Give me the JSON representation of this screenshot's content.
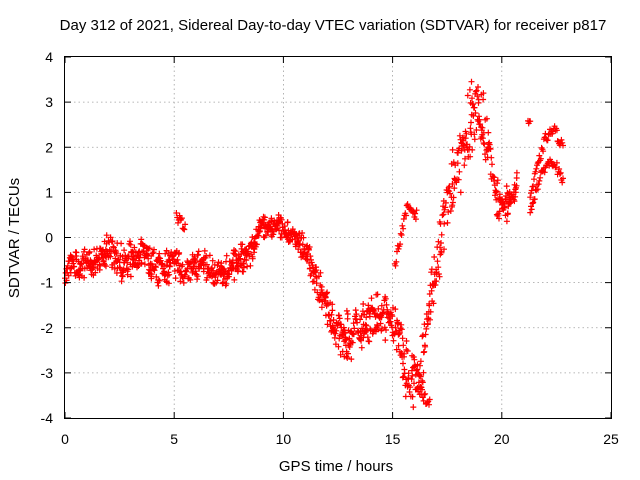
{
  "chart_data": {
    "type": "scatter",
    "title": "Day 312 of 2021, Sidereal Day-to-day VTEC variation (SDTVAR) for receiver p817",
    "xlabel": "GPS time / hours",
    "ylabel": "SDTVAR / TECUs",
    "xlim": [
      0,
      25
    ],
    "ylim": [
      -4,
      4
    ],
    "xticks": [
      0,
      5,
      10,
      15,
      20,
      25
    ],
    "yticks": [
      -4,
      -3,
      -2,
      -1,
      0,
      1,
      2,
      3,
      4
    ],
    "xtick_labels": [
      "0",
      "5",
      "10",
      "15",
      "20",
      "25"
    ],
    "ytick_labels": [
      "-4",
      "-3",
      "-2",
      "-1",
      "0",
      "1",
      "2",
      "3",
      "4"
    ],
    "grid": true,
    "marker": "+",
    "color": "#ff0000",
    "series": [
      {
        "name": "SDTVAR",
        "trend": {
          "x": [
            0.0,
            0.3,
            0.6,
            1.0,
            1.5,
            2.0,
            2.5,
            3.0,
            3.5,
            4.0,
            4.5,
            5.0,
            5.5,
            6.0,
            6.5,
            7.0,
            7.5,
            8.0,
            8.5,
            9.0,
            9.3,
            9.7,
            10.0,
            10.5,
            11.0,
            11.5,
            12.0,
            12.5,
            13.0,
            13.5,
            14.0,
            14.5,
            15.0,
            15.3,
            15.6,
            16.0,
            16.3,
            16.6,
            17.0,
            17.3,
            17.6,
            18.0,
            18.3,
            18.6,
            18.9,
            19.2,
            19.5,
            19.8,
            20.1,
            20.4,
            20.7
          ],
          "y": [
            -0.9,
            -0.5,
            -0.7,
            -0.5,
            -0.6,
            -0.2,
            -0.6,
            -0.5,
            -0.3,
            -0.6,
            -0.7,
            -0.5,
            -0.8,
            -0.6,
            -0.6,
            -0.9,
            -0.7,
            -0.5,
            -0.3,
            0.3,
            0.2,
            0.3,
            0.2,
            0.0,
            -0.3,
            -0.9,
            -1.6,
            -2.1,
            -2.2,
            -2.0,
            -1.8,
            -1.7,
            -1.8,
            -2.2,
            -2.9,
            -3.2,
            -3.0,
            -1.8,
            -0.6,
            0.2,
            1.0,
            1.6,
            2.1,
            2.7,
            2.8,
            2.4,
            1.5,
            0.8,
            0.7,
            0.9,
            1.2
          ]
        },
        "spread": {
          "x": [
            0.0,
            2.0,
            4.0,
            6.0,
            8.0,
            9.0,
            10.0,
            11.0,
            12.0,
            13.0,
            14.0,
            15.0,
            15.5,
            16.0,
            16.5,
            17.0,
            18.0,
            19.0,
            20.0,
            20.7
          ],
          "y": [
            0.25,
            0.35,
            0.45,
            0.3,
            0.35,
            0.25,
            0.2,
            0.3,
            0.45,
            0.5,
            0.45,
            0.4,
            0.6,
            0.6,
            0.5,
            0.7,
            0.7,
            0.7,
            0.35,
            0.3
          ]
        },
        "extra_segments": [
          {
            "x": [
              5.1,
              5.5
            ],
            "y": [
              0.45,
              0.25
            ]
          },
          {
            "x": [
              15.1,
              15.4,
              15.7,
              16.1
            ],
            "y": [
              -0.6,
              0.1,
              0.7,
              0.5
            ]
          },
          {
            "x": [
              16.1,
              16.4,
              16.7
            ],
            "y": [
              -3.3,
              -3.5,
              -3.7
            ]
          },
          {
            "x": [
              21.2,
              21.3
            ],
            "y": [
              2.6,
              2.6
            ]
          },
          {
            "x": [
              21.3,
              21.6,
              22.0,
              22.4,
              22.8
            ],
            "y": [
              0.9,
              1.5,
              2.2,
              2.4,
              2.0
            ]
          },
          {
            "x": [
              21.3,
              21.6,
              22.0,
              22.4,
              22.8
            ],
            "y": [
              0.6,
              1.1,
              1.6,
              1.7,
              1.2
            ]
          }
        ]
      }
    ]
  }
}
